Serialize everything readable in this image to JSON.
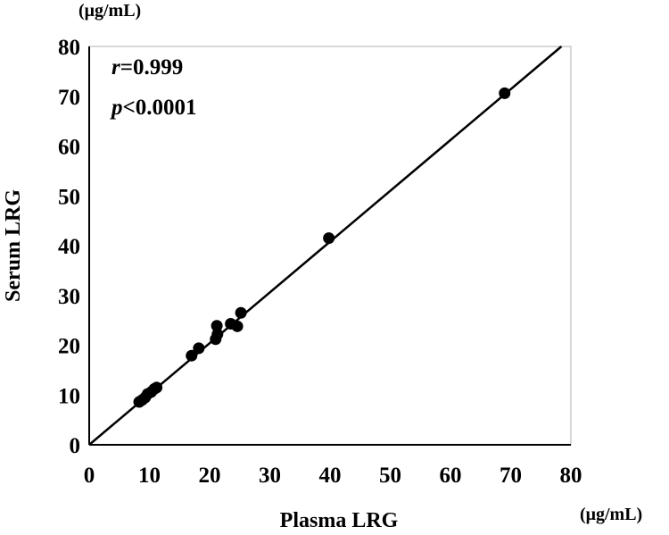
{
  "chart_data": {
    "type": "scatter",
    "title": "",
    "xlabel": "Plasma LRG",
    "ylabel": "Serum LRG",
    "x_unit": "(μg/mL)",
    "y_unit": "(μg/mL)",
    "xlim": [
      0,
      80
    ],
    "ylim": [
      0,
      80
    ],
    "x_ticks": [
      "0",
      "10",
      "20",
      "30",
      "40",
      "50",
      "60",
      "70",
      "80"
    ],
    "y_ticks": [
      "0",
      "10",
      "20",
      "30",
      "40",
      "50",
      "60",
      "70",
      "80"
    ],
    "grid": false,
    "annotations": {
      "r_symbol": "r",
      "r_value": "=0.999",
      "p_symbol": "p",
      "p_value": "<0.0001"
    },
    "regression_line": {
      "slope": 1.02,
      "intercept": 0
    },
    "points": [
      {
        "x": 8.3,
        "y": 8.6
      },
      {
        "x": 8.8,
        "y": 9.0
      },
      {
        "x": 9.3,
        "y": 9.5
      },
      {
        "x": 9.7,
        "y": 10.2
      },
      {
        "x": 10.3,
        "y": 10.6
      },
      {
        "x": 10.8,
        "y": 11.2
      },
      {
        "x": 11.2,
        "y": 11.5
      },
      {
        "x": 17.0,
        "y": 17.9
      },
      {
        "x": 18.2,
        "y": 19.4
      },
      {
        "x": 21.0,
        "y": 21.2
      },
      {
        "x": 21.3,
        "y": 22.2
      },
      {
        "x": 21.2,
        "y": 23.9
      },
      {
        "x": 23.5,
        "y": 24.3
      },
      {
        "x": 24.6,
        "y": 23.8
      },
      {
        "x": 25.2,
        "y": 26.5
      },
      {
        "x": 39.8,
        "y": 41.5
      },
      {
        "x": 69.0,
        "y": 70.6
      }
    ]
  }
}
